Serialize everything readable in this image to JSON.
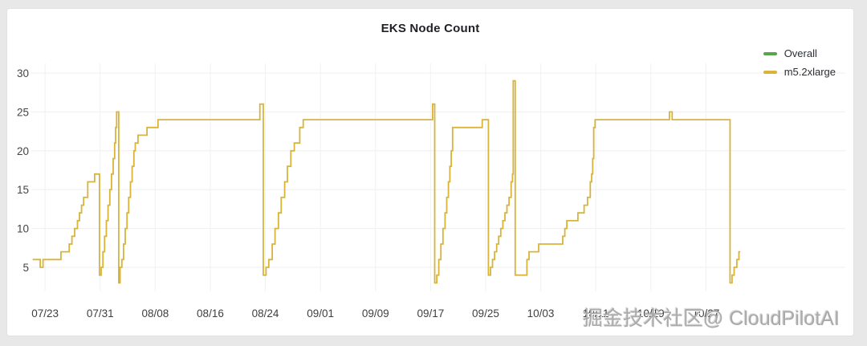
{
  "panel": {
    "title": "EKS Node Count"
  },
  "legend": {
    "items": [
      {
        "label": "Overall",
        "color": "#56A64B"
      },
      {
        "label": "m5.2xlarge",
        "color": "#D9B43B"
      }
    ]
  },
  "watermark": {
    "text": "掘金技术社区@ CloudPilotAI"
  },
  "chart_data": {
    "type": "line",
    "title": "EKS Node Count",
    "line_style": "step-after",
    "grid": true,
    "legend_position": "top-right",
    "x_axis": {
      "kind": "time",
      "day0_date": "07/21",
      "tick_labels": [
        "07/23",
        "07/31",
        "08/08",
        "08/16",
        "08/24",
        "09/01",
        "09/09",
        "09/17",
        "09/25",
        "10/03",
        "10/11",
        "10/19",
        "10/27"
      ],
      "tick_days": [
        2,
        10,
        18,
        26,
        34,
        42,
        50,
        58,
        66,
        74,
        82,
        90,
        98
      ],
      "domain_days": [
        0,
        118
      ]
    },
    "y_axis": {
      "ticks": [
        5,
        10,
        15,
        20,
        25,
        30
      ],
      "domain": [
        2,
        32
      ],
      "label": ""
    },
    "series": [
      {
        "name": "Overall",
        "color": "#56A64B",
        "visible_as_distinct_line": false,
        "points": []
      },
      {
        "name": "m5.2xlarge",
        "color": "#D9B43B",
        "visible_as_distinct_line": true,
        "points": [
          [
            0.2,
            6
          ],
          [
            1.3,
            5
          ],
          [
            1.7,
            6
          ],
          [
            4.3,
            7
          ],
          [
            5.5,
            8
          ],
          [
            5.9,
            9
          ],
          [
            6.3,
            10
          ],
          [
            6.7,
            11
          ],
          [
            7.0,
            12
          ],
          [
            7.3,
            13
          ],
          [
            7.6,
            14
          ],
          [
            8.2,
            16
          ],
          [
            9.2,
            17
          ],
          [
            9.9,
            4
          ],
          [
            10.15,
            5
          ],
          [
            10.4,
            7
          ],
          [
            10.65,
            9
          ],
          [
            10.9,
            11
          ],
          [
            11.15,
            13
          ],
          [
            11.4,
            15
          ],
          [
            11.65,
            17
          ],
          [
            11.9,
            19
          ],
          [
            12.1,
            21
          ],
          [
            12.25,
            23
          ],
          [
            12.4,
            25
          ],
          [
            12.7,
            3
          ],
          [
            12.9,
            5
          ],
          [
            13.15,
            6
          ],
          [
            13.4,
            8
          ],
          [
            13.65,
            10
          ],
          [
            13.9,
            12
          ],
          [
            14.15,
            14
          ],
          [
            14.4,
            16
          ],
          [
            14.65,
            18
          ],
          [
            14.9,
            20
          ],
          [
            15.1,
            21
          ],
          [
            15.5,
            22
          ],
          [
            16.8,
            23
          ],
          [
            18.4,
            24
          ],
          [
            33.2,
            26
          ],
          [
            33.7,
            4
          ],
          [
            34.1,
            5
          ],
          [
            34.5,
            6
          ],
          [
            35.0,
            8
          ],
          [
            35.4,
            10
          ],
          [
            35.9,
            12
          ],
          [
            36.3,
            14
          ],
          [
            36.8,
            16
          ],
          [
            37.2,
            18
          ],
          [
            37.7,
            20
          ],
          [
            38.2,
            21
          ],
          [
            39.0,
            23
          ],
          [
            39.5,
            24
          ],
          [
            58.3,
            26
          ],
          [
            58.6,
            3
          ],
          [
            58.9,
            4
          ],
          [
            59.2,
            6
          ],
          [
            59.5,
            8
          ],
          [
            59.8,
            10
          ],
          [
            60.1,
            12
          ],
          [
            60.35,
            14
          ],
          [
            60.6,
            16
          ],
          [
            60.8,
            18
          ],
          [
            61.0,
            20
          ],
          [
            61.2,
            23
          ],
          [
            65.5,
            24
          ],
          [
            66.4,
            4
          ],
          [
            66.7,
            5
          ],
          [
            67.0,
            6
          ],
          [
            67.3,
            7
          ],
          [
            67.6,
            8
          ],
          [
            67.9,
            9
          ],
          [
            68.2,
            10
          ],
          [
            68.5,
            11
          ],
          [
            68.8,
            12
          ],
          [
            69.1,
            13
          ],
          [
            69.4,
            14
          ],
          [
            69.7,
            16
          ],
          [
            69.9,
            17
          ],
          [
            70.0,
            29
          ],
          [
            70.3,
            4
          ],
          [
            72.0,
            6
          ],
          [
            72.3,
            7
          ],
          [
            73.7,
            8
          ],
          [
            77.2,
            9
          ],
          [
            77.5,
            10
          ],
          [
            77.8,
            11
          ],
          [
            79.4,
            12
          ],
          [
            80.3,
            13
          ],
          [
            80.8,
            14
          ],
          [
            81.2,
            16
          ],
          [
            81.4,
            17
          ],
          [
            81.55,
            19
          ],
          [
            81.7,
            23
          ],
          [
            81.9,
            24
          ],
          [
            92.7,
            25
          ],
          [
            93.1,
            24
          ],
          [
            101.5,
            3
          ],
          [
            101.8,
            4
          ],
          [
            102.1,
            5
          ],
          [
            102.5,
            6
          ],
          [
            102.8,
            7
          ],
          [
            103.0,
            7
          ]
        ]
      }
    ]
  }
}
